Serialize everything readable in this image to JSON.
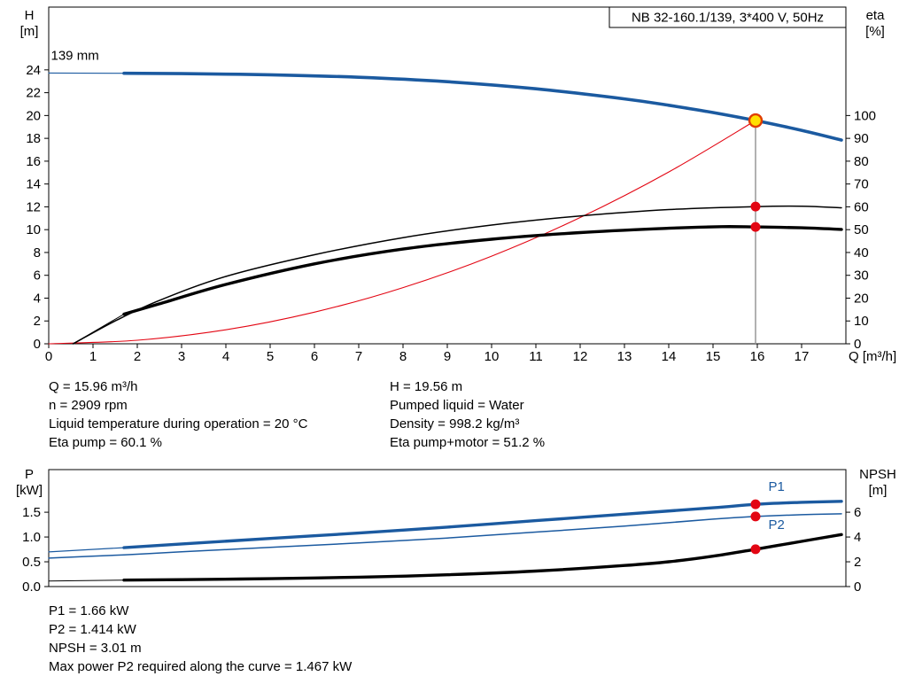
{
  "header": {
    "title_box": "NB 32-160.1/139, 3*400 V, 50Hz"
  },
  "colors": {
    "curve_blue": "#1b5aa0",
    "curve_red": "#e30613",
    "curve_black": "#000000",
    "dot_red": "#e30613",
    "duty_fill": "#ffdf00",
    "duty_stroke": "#e03c00",
    "duty_line_gray": "#909090"
  },
  "info_top_left": [
    "Q = 15.96 m³/h",
    "n = 2909 rpm",
    "Liquid temperature during operation = 20 °C",
    "Eta pump = 60.1 %"
  ],
  "info_top_right": [
    "H = 19.56 m",
    "Pumped liquid = Water",
    "Density = 998.2 kg/m³",
    "Eta pump+motor = 51.2 %"
  ],
  "info_bottom": [
    "P1 = 1.66 kW",
    "P2 = 1.414 kW",
    "NPSH = 3.01 m",
    "Max power P2 required along the curve = 1.467 kW"
  ],
  "chart_data": [
    {
      "id": "qh",
      "type": "line",
      "title": "NB 32-160.1/139, 3*400 V, 50Hz",
      "x_label": "Q [m³/h]",
      "y_left_label": [
        "H",
        "[m]"
      ],
      "y_right_label": [
        "eta",
        "[%]"
      ],
      "x_range": [
        0,
        18
      ],
      "y_left_range": [
        0,
        29.5
      ],
      "y_right_range": [
        0,
        147.5
      ],
      "x_ticks": [
        {
          "v": 0,
          "t": "0"
        },
        {
          "v": 1,
          "t": "1"
        },
        {
          "v": 2,
          "t": "2"
        },
        {
          "v": 3,
          "t": "3"
        },
        {
          "v": 4,
          "t": "4"
        },
        {
          "v": 5,
          "t": "5"
        },
        {
          "v": 6,
          "t": "6"
        },
        {
          "v": 7,
          "t": "7"
        },
        {
          "v": 8,
          "t": "8"
        },
        {
          "v": 9,
          "t": "9"
        },
        {
          "v": 10,
          "t": "10"
        },
        {
          "v": 11,
          "t": "11"
        },
        {
          "v": 12,
          "t": "12"
        },
        {
          "v": 13,
          "t": "13"
        },
        {
          "v": 14,
          "t": "14"
        },
        {
          "v": 15,
          "t": "15"
        },
        {
          "v": 16,
          "t": "16"
        },
        {
          "v": 17,
          "t": "17"
        }
      ],
      "y_left_ticks": [
        {
          "v": 0,
          "t": "0"
        },
        {
          "v": 2,
          "t": "2"
        },
        {
          "v": 4,
          "t": "4"
        },
        {
          "v": 6,
          "t": "6"
        },
        {
          "v": 8,
          "t": "8"
        },
        {
          "v": 10,
          "t": "10"
        },
        {
          "v": 12,
          "t": "12"
        },
        {
          "v": 14,
          "t": "14"
        },
        {
          "v": 16,
          "t": "16"
        },
        {
          "v": 18,
          "t": "18"
        },
        {
          "v": 20,
          "t": "20"
        },
        {
          "v": 22,
          "t": "22"
        },
        {
          "v": 24,
          "t": "24"
        }
      ],
      "y_right_ticks": [
        {
          "v": 0,
          "t": "0"
        },
        {
          "v": 10,
          "t": "10"
        },
        {
          "v": 20,
          "t": "20"
        },
        {
          "v": 30,
          "t": "30"
        },
        {
          "v": 40,
          "t": "40"
        },
        {
          "v": 50,
          "t": "50"
        },
        {
          "v": 60,
          "t": "60"
        },
        {
          "v": 70,
          "t": "70"
        },
        {
          "v": 80,
          "t": "80"
        },
        {
          "v": 90,
          "t": "90"
        },
        {
          "v": 100,
          "t": "100"
        }
      ],
      "annotation": {
        "text": "139 mm",
        "x": 0.05,
        "y": 24.9
      },
      "series": [
        {
          "name": "head-curve-lead",
          "axis": "left",
          "color": "#1b5aa0",
          "width": 1.2,
          "x": [
            0,
            1.7
          ],
          "y": [
            23.72,
            23.7
          ]
        },
        {
          "name": "head-curve-139mm",
          "axis": "left",
          "color": "#1b5aa0",
          "width": 3.6,
          "x": [
            1.7,
            3,
            5,
            7,
            9,
            11,
            13,
            14,
            15,
            15.96,
            17,
            17.9
          ],
          "y": [
            23.7,
            23.67,
            23.57,
            23.35,
            22.96,
            22.34,
            21.46,
            20.9,
            20.26,
            19.56,
            18.7,
            17.85
          ]
        },
        {
          "name": "system-curve",
          "axis": "left",
          "color": "#e30613",
          "width": 1.1,
          "x": [
            0,
            2,
            4,
            6,
            8,
            10,
            12,
            14,
            15.96
          ],
          "y": [
            0,
            0.31,
            1.23,
            2.77,
            4.92,
            7.68,
            11.06,
            15.05,
            19.56
          ]
        },
        {
          "name": "eta-pump-curve",
          "axis": "right",
          "color": "#000000",
          "width": 1.5,
          "x": [
            0.55,
            1.5,
            2.5,
            4,
            6,
            8,
            10,
            12,
            14,
            15.96,
            17,
            17.9
          ],
          "y": [
            0,
            10,
            19,
            29.5,
            39,
            46.5,
            52,
            56,
            58.8,
            60.1,
            60.3,
            59.6
          ]
        },
        {
          "name": "eta-pump-motor-lead",
          "axis": "right",
          "color": "#000000",
          "width": 1,
          "x": [
            0.55,
            1.7
          ],
          "y": [
            0,
            13
          ]
        },
        {
          "name": "eta-pump-motor-curve",
          "axis": "right",
          "color": "#000000",
          "width": 3.4,
          "x": [
            1.7,
            2.5,
            4,
            6,
            8,
            10,
            12,
            14,
            15.2,
            15.96,
            17,
            17.9
          ],
          "y": [
            13,
            17.5,
            26,
            35,
            41.5,
            45.8,
            48.7,
            50.6,
            51.3,
            51.2,
            50.8,
            50.1
          ]
        }
      ],
      "duty_line": {
        "x": 15.96,
        "y_top": 19.56
      },
      "markers": [
        {
          "kind": "duty",
          "name": "duty-point",
          "x": 15.96,
          "y": 19.56,
          "axis": "left"
        },
        {
          "kind": "dot",
          "name": "eta-pump-point",
          "x": 15.96,
          "y": 60.1,
          "axis": "right"
        },
        {
          "kind": "dot",
          "name": "eta-pump-motor-point",
          "x": 15.96,
          "y": 51.2,
          "axis": "right"
        }
      ],
      "labels": []
    },
    {
      "id": "pnpsh",
      "type": "line",
      "title": "",
      "x_label": "",
      "y_left_label": [
        "P",
        "[kW]"
      ],
      "y_right_label": [
        "NPSH",
        "[m]"
      ],
      "x_range": [
        0,
        18
      ],
      "y_left_range": [
        0,
        2.36
      ],
      "y_right_range": [
        0,
        9.44
      ],
      "x_ticks": [],
      "y_left_ticks": [
        {
          "v": 0,
          "t": "0.0"
        },
        {
          "v": 0.5,
          "t": "0.5"
        },
        {
          "v": 1,
          "t": "1.0"
        },
        {
          "v": 1.5,
          "t": "1.5"
        }
      ],
      "y_right_ticks": [
        {
          "v": 0,
          "t": "0"
        },
        {
          "v": 2,
          "t": "2"
        },
        {
          "v": 4,
          "t": "4"
        },
        {
          "v": 6,
          "t": "6"
        }
      ],
      "series": [
        {
          "name": "p1-curve-lead",
          "axis": "left",
          "color": "#1b5aa0",
          "width": 1.2,
          "x": [
            0,
            1.7
          ],
          "y": [
            0.7,
            0.785
          ]
        },
        {
          "name": "p1-curve",
          "axis": "left",
          "color": "#1b5aa0",
          "width": 3.4,
          "x": [
            1.7,
            3,
            5,
            7,
            9,
            11,
            13,
            15,
            15.96,
            17,
            17.9
          ],
          "y": [
            0.785,
            0.86,
            0.97,
            1.08,
            1.2,
            1.33,
            1.46,
            1.59,
            1.66,
            1.7,
            1.72
          ]
        },
        {
          "name": "p2-curve",
          "axis": "left",
          "color": "#1b5aa0",
          "width": 1.5,
          "x": [
            0,
            1.7,
            3,
            5,
            7,
            9,
            11,
            13,
            15,
            15.96,
            17,
            17.9
          ],
          "y": [
            0.575,
            0.64,
            0.7,
            0.79,
            0.88,
            0.98,
            1.1,
            1.22,
            1.36,
            1.414,
            1.45,
            1.467
          ]
        },
        {
          "name": "npsh-curve-lead",
          "axis": "right",
          "color": "#000000",
          "width": 1,
          "x": [
            0,
            1.7
          ],
          "y": [
            0.45,
            0.52
          ]
        },
        {
          "name": "npsh-curve",
          "axis": "right",
          "color": "#000000",
          "width": 3.4,
          "x": [
            1.7,
            3,
            5,
            7,
            9,
            11,
            13,
            14,
            15,
            15.96,
            17,
            17.9
          ],
          "y": [
            0.52,
            0.56,
            0.64,
            0.76,
            0.95,
            1.25,
            1.7,
            2.0,
            2.45,
            3.01,
            3.65,
            4.2
          ]
        }
      ],
      "duty_line": null,
      "markers": [
        {
          "kind": "dot",
          "name": "p1-point",
          "x": 15.96,
          "y": 1.66,
          "axis": "left"
        },
        {
          "kind": "dot",
          "name": "p2-point",
          "x": 15.96,
          "y": 1.414,
          "axis": "left"
        },
        {
          "kind": "dot",
          "name": "npsh-point",
          "x": 15.96,
          "y": 3.01,
          "axis": "right"
        }
      ],
      "labels": [
        {
          "text": "P1",
          "x": 16.25,
          "y": 1.93,
          "axis": "left",
          "color": "#1b5aa0"
        },
        {
          "text": "P2",
          "x": 16.25,
          "y": 1.16,
          "axis": "left",
          "color": "#1b5aa0"
        }
      ]
    }
  ]
}
